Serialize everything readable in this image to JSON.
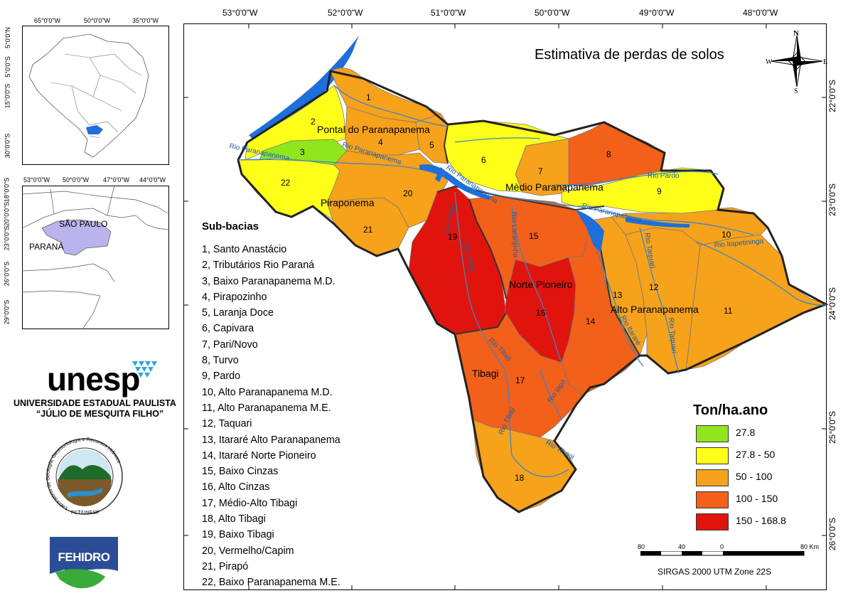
{
  "map": {
    "title": "Estimativa de perdas de solos",
    "top_coords": [
      "53°0'0\"W",
      "52°0'0\"W",
      "51°0'0\"W",
      "50°0'0\"W",
      "49°0'0\"W",
      "48°0'0\"W"
    ],
    "right_coords": [
      "22°0'0\"S",
      "23°0'0\"S",
      "24°0'0\"S",
      "25°0'0\"S",
      "26°0'0\"S"
    ],
    "regions": [
      "Pontal do Paranapanema",
      "Mèdio Paranapanema",
      "Piraponema",
      "Norte Pioneiro",
      "Alto Paranapanema",
      "Tibagi"
    ],
    "subbasin_numbers": [
      "1",
      "2",
      "3",
      "4",
      "5",
      "6",
      "7",
      "8",
      "9",
      "10",
      "11",
      "12",
      "13",
      "14",
      "15",
      "16",
      "17",
      "18",
      "19",
      "20",
      "21",
      "22"
    ],
    "rivers": {
      "paranapanema": "Rio Paranapanema",
      "pardo": "Rio Pardo",
      "tibaji": "Rio Tibaji",
      "tibagi": "Rio Tibagi",
      "laranjinha": "Rio Laranjinha",
      "taquari": "Rio Taquari",
      "itapetininga": "Rio Itapetininga",
      "itarare": "Rio Itararé",
      "iapo": "Rio Iapó"
    }
  },
  "compass": {
    "n": "N",
    "s": "S",
    "e": "E",
    "w": "W"
  },
  "inset_brazil": {
    "top_coords": [
      "65°0'0\"W",
      "50°0'0\"W",
      "35°0'0\"W"
    ],
    "left_coords": [
      "5°0'0\"N",
      "5°0'0\"S",
      "15°0'0\"S",
      "30°0'0\"S"
    ]
  },
  "inset_region": {
    "top_coords": [
      "53°0'0\"W",
      "50°0'0\"W",
      "47°0'0\"W",
      "44°0'0\"W"
    ],
    "left_coords": [
      "18°0'0\"S",
      "20°0'0\"S",
      "23°0'0\"S",
      "26°0'0\"S",
      "29°0'0\"S"
    ],
    "labels": [
      "SÃO PAULO",
      "PARANÁ"
    ]
  },
  "unesp": {
    "logo_text": "unesp",
    "university": "UNIVERSIDADE ESTADUAL PAULISTA",
    "subtitle": "“JÚLIO DE MESQUITA FILHO”"
  },
  "lab_logo": {
    "ring_text": "Laboratório de Geologia, Geomorfologia e Recursos Hídricos",
    "bottom_text": "FCT/UNESP"
  },
  "fehidro": {
    "text": "FEHIDRO"
  },
  "subbacias": {
    "title": "Sub-bacias",
    "items": [
      "1, Santo Anastácio",
      "2, Tributários Rio Paraná",
      "3, Baixo Paranapanema M.D.",
      "4, Pirapozinho",
      "5, Laranja Doce",
      "6, Capivara",
      "7, Pari/Novo",
      "8, Turvo",
      "9, Pardo",
      "10, Alto Paranapanema M.D.",
      "11, Alto Paranapanema M.E.",
      "12, Taquari",
      "13, Itararé Alto Paranapanema",
      "14, Itararé Norte Pioneiro",
      "15, Baixo Cinzas",
      "16, Alto Cinzas",
      "17, Médio-Alto Tibagi",
      "18, Alto Tibagi",
      "19, Baixo Tibagi",
      "20, Vermelho/Capim",
      "21, Pirapó",
      "22, Baixo Paranapanema M.E."
    ]
  },
  "legend": {
    "title": "Ton/ha.ano",
    "classes": [
      {
        "label": "27.8",
        "color": "#8fe61c"
      },
      {
        "label": "27.8 - 50",
        "color": "#ffff1a"
      },
      {
        "label": "50 - 100",
        "color": "#f7a21b"
      },
      {
        "label": "100 - 150",
        "color": "#f2601a"
      },
      {
        "label": "150 - 168.8",
        "color": "#e0140c"
      }
    ]
  },
  "scale_bar": {
    "ticks": [
      "80",
      "40",
      "0",
      "80 Km"
    ],
    "projection": "SIRGAS 2000 UTM Zone 22S"
  }
}
